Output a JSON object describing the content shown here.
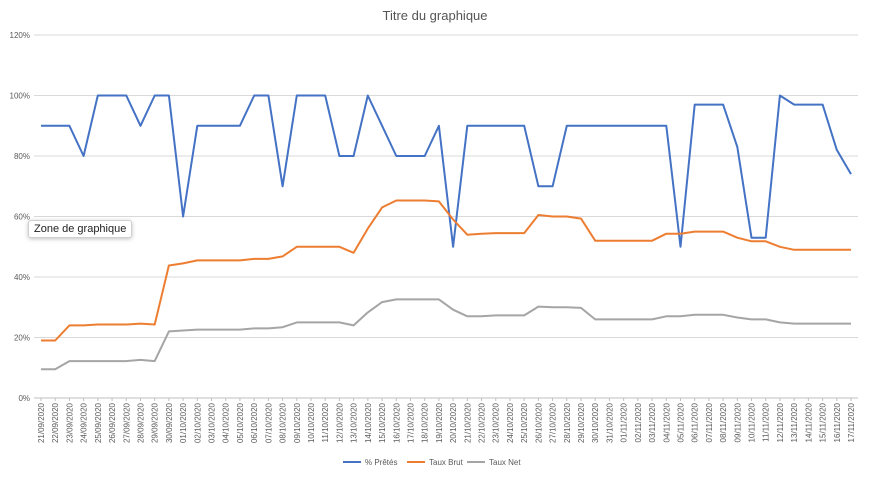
{
  "tooltip": "Zone de graphique",
  "chart_data": {
    "type": "line",
    "title": "Titre du graphique",
    "ylim": [
      0,
      120
    ],
    "ytick_labels": [
      "0%",
      "20%",
      "40%",
      "60%",
      "80%",
      "100%",
      "120%"
    ],
    "grid": true,
    "legend_position": "bottom",
    "categories": [
      "21/09/2020",
      "22/09/2020",
      "23/09/2020",
      "24/09/2020",
      "25/09/2020",
      "26/09/2020",
      "27/09/2020",
      "28/09/2020",
      "29/09/2020",
      "30/09/2020",
      "01/10/2020",
      "02/10/2020",
      "03/10/2020",
      "04/10/2020",
      "05/10/2020",
      "06/10/2020",
      "07/10/2020",
      "08/10/2020",
      "09/10/2020",
      "10/10/2020",
      "11/10/2020",
      "12/10/2020",
      "13/10/2020",
      "14/10/2020",
      "15/10/2020",
      "16/10/2020",
      "17/10/2020",
      "18/10/2020",
      "19/10/2020",
      "20/10/2020",
      "21/10/2020",
      "22/10/2020",
      "23/10/2020",
      "24/10/2020",
      "25/10/2020",
      "26/10/2020",
      "27/10/2020",
      "28/10/2020",
      "29/10/2020",
      "30/10/2020",
      "31/10/2020",
      "01/11/2020",
      "02/11/2020",
      "03/11/2020",
      "04/11/2020",
      "05/11/2020",
      "06/11/2020",
      "07/11/2020",
      "08/11/2020",
      "09/11/2020",
      "10/11/2020",
      "11/11/2020",
      "12/11/2020",
      "13/11/2020",
      "14/11/2020",
      "15/11/2020",
      "16/11/2020",
      "17/11/2020"
    ],
    "series": [
      {
        "name": "% Prêtés",
        "color": "#4472C4",
        "values": [
          90,
          90,
          90,
          80,
          100,
          100,
          100,
          90,
          100,
          100,
          60,
          90,
          90,
          90,
          90,
          100,
          100,
          70,
          100,
          100,
          100,
          80,
          80,
          100,
          90,
          80,
          80,
          80,
          90,
          50,
          90,
          90,
          90,
          90,
          90,
          70,
          70,
          90,
          90,
          90,
          90,
          90,
          90,
          90,
          90,
          50,
          97,
          97,
          97,
          83,
          53,
          53,
          100,
          97,
          97,
          97,
          82,
          74
        ]
      },
      {
        "name": "Taux Brut",
        "color": "#ED7D31",
        "values": [
          19,
          19,
          24,
          24,
          24.3,
          24.3,
          24.3,
          24.6,
          24.3,
          43.8,
          44.5,
          45.5,
          45.5,
          45.5,
          45.5,
          46,
          46,
          46.8,
          50,
          50,
          50,
          50,
          48,
          56,
          63,
          65.3,
          65.3,
          65.3,
          65,
          59,
          54,
          54.3,
          54.5,
          54.5,
          54.5,
          60.5,
          60,
          60,
          59.3,
          52,
          52,
          52,
          52,
          52,
          54.3,
          54.3,
          55,
          55,
          55,
          53,
          51.8,
          51.8,
          50,
          49,
          49,
          49,
          49,
          49
        ]
      },
      {
        "name": "Taux Net",
        "color": "#A5A5A5",
        "values": [
          9.5,
          9.5,
          12.2,
          12.2,
          12.2,
          12.2,
          12.2,
          12.6,
          12.2,
          22,
          22.3,
          22.6,
          22.6,
          22.6,
          22.6,
          23,
          23,
          23.4,
          25,
          25,
          25,
          25,
          24,
          28.3,
          31.7,
          32.6,
          32.6,
          32.6,
          32.6,
          29.2,
          27,
          27,
          27.3,
          27.3,
          27.3,
          30.2,
          30,
          30,
          29.8,
          26,
          26,
          26,
          26,
          26,
          27,
          27,
          27.5,
          27.5,
          27.5,
          26.6,
          26,
          26,
          25,
          24.6,
          24.6,
          24.6,
          24.6,
          24.6
        ]
      }
    ]
  }
}
